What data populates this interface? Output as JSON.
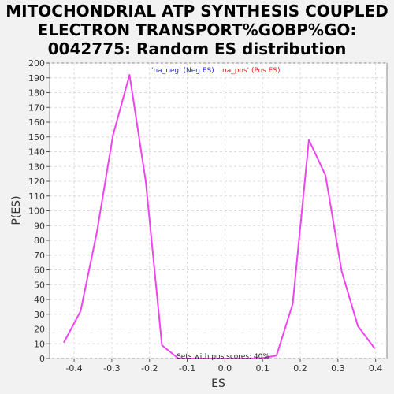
{
  "chart_data": {
    "type": "line",
    "title_lines": [
      "MITOCHONDRIAL ATP SYNTHESIS COUPLED",
      "ELECTRON TRANSPORT%GOBP%GO:",
      "0042775: Random ES distribution"
    ],
    "xlabel": "ES",
    "ylabel": "P(ES)",
    "xlim": [
      -0.465,
      0.43
    ],
    "ylim": [
      0,
      200
    ],
    "xticks": [
      -0.4,
      -0.3,
      -0.2,
      -0.1,
      0.0,
      0.1,
      0.2,
      0.3,
      0.4
    ],
    "xtick_labels": [
      "-0.4",
      "-0.3",
      "-0.2",
      "-0.1",
      "0.0",
      "0.1",
      "0.2",
      "0.3",
      "0.4"
    ],
    "yticks": [
      0,
      10,
      20,
      30,
      40,
      50,
      60,
      70,
      80,
      90,
      100,
      110,
      120,
      130,
      140,
      150,
      160,
      170,
      180,
      190,
      200
    ],
    "grid": true,
    "legend": {
      "neg_label": "'na_neg' (Neg ES)",
      "pos_label": "na_pos' (Pos ES)",
      "neg_color": "#2a2ad6",
      "pos_color": "#e02020",
      "placement": "top-center"
    },
    "annotation": "Sets with pos scores: 40%",
    "line_color": "#ee44ee",
    "series": [
      {
        "x": [
          -0.427,
          -0.383,
          -0.34,
          -0.297,
          -0.253,
          -0.21,
          -0.167,
          -0.123,
          -0.08,
          -0.037,
          0.007,
          0.05,
          0.093,
          0.137,
          0.18,
          0.223,
          0.267,
          0.31,
          0.353,
          0.397
        ],
        "values": [
          11,
          32,
          85,
          151,
          192,
          120,
          9,
          0,
          0,
          0,
          0,
          0,
          0,
          2,
          37,
          148,
          124,
          59,
          22,
          7
        ]
      }
    ]
  }
}
